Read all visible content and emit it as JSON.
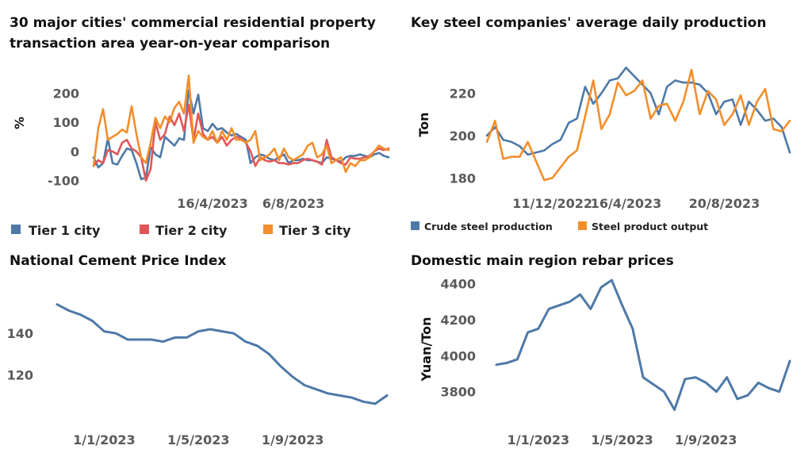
{
  "colors": {
    "blue": "#4e79a7",
    "red": "#e15759",
    "orange": "#f28e2b"
  },
  "chart_data": [
    {
      "id": "c1",
      "type": "line",
      "title": "30 major cities' commercial residential property transaction area year-on-year comparison",
      "title_lines": [
        "30 major cities' commercial residential property",
        "transaction area year-on-year comparison"
      ],
      "ylabel": "%",
      "xlabel": "",
      "ylim": [
        -120,
        280
      ],
      "yticks": [
        -100,
        0,
        100,
        200
      ],
      "ytick_labels": [
        "-100",
        "0",
        "100",
        "200"
      ],
      "xlim": [
        0,
        62
      ],
      "xticks": [
        {
          "x": 25,
          "label": "16/4/2023"
        },
        {
          "x": 42,
          "label": "6/8/2023"
        }
      ],
      "legend": "bottom",
      "legend_labels": [
        "Tier 1 city",
        "Tier 2 city",
        "Tier 3 city"
      ],
      "x": [
        0,
        1,
        2,
        3,
        4,
        5,
        6,
        7,
        8,
        9,
        10,
        11,
        12,
        13,
        14,
        15,
        16,
        17,
        18,
        19,
        20,
        21,
        22,
        23,
        24,
        25,
        26,
        27,
        28,
        29,
        30,
        31,
        32,
        33,
        34,
        35,
        36,
        37,
        38,
        39,
        40,
        41,
        42,
        43,
        44,
        45,
        46,
        47,
        48,
        49,
        50,
        51,
        52,
        53,
        54,
        55,
        56,
        57,
        58,
        59,
        60,
        61,
        62
      ],
      "series": [
        {
          "name": "Tier 1 city",
          "color": "#4e79a7",
          "values": [
            -20,
            -55,
            -40,
            45,
            -40,
            -45,
            -15,
            10,
            5,
            -40,
            -95,
            -90,
            15,
            -10,
            -20,
            50,
            35,
            20,
            45,
            40,
            210,
            130,
            195,
            80,
            70,
            95,
            75,
            80,
            65,
            55,
            60,
            50,
            40,
            -40,
            -20,
            -10,
            -15,
            -25,
            -30,
            -20,
            -10,
            -40,
            -30,
            -30,
            -25,
            -30,
            -30,
            -35,
            -40,
            -20,
            -25,
            -30,
            -35,
            -20,
            -15,
            -15,
            -10,
            -15,
            -20,
            -10,
            -5,
            -15,
            -20
          ]
        },
        {
          "name": "Tier 2 city",
          "color": "#e15759",
          "values": [
            -50,
            -30,
            -40,
            5,
            0,
            -10,
            30,
            40,
            10,
            0,
            -20,
            -100,
            -60,
            100,
            40,
            60,
            120,
            90,
            130,
            70,
            160,
            40,
            130,
            60,
            40,
            50,
            30,
            50,
            20,
            40,
            50,
            45,
            30,
            0,
            -50,
            -20,
            -30,
            -35,
            -30,
            -40,
            -40,
            -45,
            -40,
            -40,
            -30,
            -25,
            -30,
            -35,
            -45,
            40,
            -20,
            -30,
            -40,
            -45,
            -20,
            -25,
            -25,
            -20,
            -15,
            0,
            10,
            5,
            10
          ]
        },
        {
          "name": "Tier 3 city",
          "color": "#f28e2b",
          "values": [
            -50,
            80,
            145,
            40,
            50,
            60,
            75,
            65,
            155,
            60,
            -20,
            -40,
            30,
            115,
            80,
            120,
            100,
            150,
            170,
            130,
            260,
            30,
            70,
            50,
            40,
            70,
            30,
            70,
            40,
            80,
            40,
            40,
            30,
            40,
            70,
            -30,
            -20,
            -10,
            10,
            -30,
            10,
            -20,
            -30,
            -20,
            -10,
            20,
            30,
            -20,
            -10,
            20,
            -40,
            -30,
            -20,
            -70,
            -40,
            -50,
            -30,
            -30,
            -20,
            0,
            20,
            10,
            5
          ]
        }
      ]
    },
    {
      "id": "c2",
      "type": "line",
      "title": "Key steel companies' average daily production",
      "title_lines": [
        "Key steel companies' average daily production"
      ],
      "ylabel": "Ton",
      "xlabel": "",
      "ylim": [
        176,
        234
      ],
      "yticks": [
        180,
        200,
        220
      ],
      "ytick_labels": [
        "180",
        "200",
        "220"
      ],
      "xlim": [
        0,
        37
      ],
      "xticks": [
        {
          "x": 8,
          "label": "11/12/2022"
        },
        {
          "x": 17,
          "label": "16/4/2023"
        },
        {
          "x": 29,
          "label": "20/8/2023"
        }
      ],
      "legend": "bottom",
      "legend_labels": [
        "Crude steel production",
        "Steel product output"
      ],
      "x": [
        0,
        1,
        2,
        3,
        4,
        5,
        6,
        7,
        8,
        9,
        10,
        11,
        12,
        13,
        14,
        15,
        16,
        17,
        18,
        19,
        20,
        21,
        22,
        23,
        24,
        25,
        26,
        27,
        28,
        29,
        30,
        31,
        32,
        33,
        34,
        35,
        36,
        37
      ],
      "series": [
        {
          "name": "Crude steel production",
          "color": "#4e79a7",
          "values": [
            200,
            204,
            198,
            197,
            195,
            191,
            192,
            193,
            196,
            198,
            206,
            208,
            223,
            215,
            220,
            226,
            227,
            232,
            228,
            224,
            220,
            210,
            223,
            226,
            225,
            225,
            224,
            220,
            210,
            216,
            217,
            205,
            216,
            212,
            207,
            208,
            204,
            192
          ]
        },
        {
          "name": "Steel product output",
          "color": "#f28e2b",
          "values": [
            197,
            207,
            189,
            190,
            190,
            197,
            188,
            179,
            180,
            185,
            190,
            193,
            209,
            226,
            203,
            210,
            225,
            219,
            221,
            226,
            208,
            214,
            215,
            207,
            216,
            231,
            210,
            221,
            217,
            205,
            210,
            219,
            205,
            216,
            222,
            203,
            202,
            207
          ]
        }
      ]
    },
    {
      "id": "c3",
      "type": "line",
      "title": "National Cement Price Index",
      "title_lines": [
        "National Cement Price Index"
      ],
      "ylabel": "",
      "xlabel": "",
      "ylim": [
        101,
        160
      ],
      "yticks": [
        120,
        140
      ],
      "ytick_labels": [
        "120",
        "140"
      ],
      "xlim": [
        0,
        14
      ],
      "xticks": [
        {
          "x": 2,
          "label": "1/1/2023"
        },
        {
          "x": 6,
          "label": "1/5/2023"
        },
        {
          "x": 10,
          "label": "1/9/2023"
        }
      ],
      "legend": "none",
      "x": [
        0,
        0.5,
        1,
        1.5,
        2,
        2.5,
        3,
        3.5,
        4,
        4.5,
        5,
        5.5,
        6,
        6.5,
        7,
        7.5,
        8,
        8.5,
        9,
        9.5,
        10,
        10.5,
        11,
        11.5,
        12,
        12.5,
        13,
        13.5,
        14
      ],
      "series": [
        {
          "name": "",
          "color": "#4e79a7",
          "values": [
            154,
            151,
            149,
            146,
            141,
            140,
            137,
            137,
            137,
            136,
            138,
            138,
            141,
            142,
            141,
            140,
            136,
            134,
            130,
            124,
            119,
            115,
            113,
            111,
            110,
            109,
            107,
            106,
            110
          ]
        }
      ]
    },
    {
      "id": "c4",
      "type": "line",
      "title": "Domestic main region rebar prices",
      "title_lines": [
        "Domestic main region rebar prices"
      ],
      "ylabel": "Yuan/Ton",
      "xlabel": "",
      "ylim": [
        3640,
        4460
      ],
      "yticks": [
        3800,
        4000,
        4200,
        4400
      ],
      "ytick_labels": [
        "3800",
        "4000",
        "4200",
        "4400"
      ],
      "xlim": [
        0,
        14
      ],
      "xticks": [
        {
          "x": 2,
          "label": "1/1/2023"
        },
        {
          "x": 6,
          "label": "1/5/2023"
        },
        {
          "x": 10,
          "label": "1/9/2023"
        }
      ],
      "legend": "none",
      "x": [
        0,
        0.5,
        1,
        1.5,
        2,
        2.5,
        3,
        3.5,
        4,
        4.5,
        5,
        5.5,
        6,
        6.5,
        7,
        7.5,
        8,
        8.5,
        9,
        9.5,
        10,
        10.5,
        11,
        11.5,
        12,
        12.5,
        13,
        13.5,
        14
      ],
      "series": [
        {
          "name": "",
          "color": "#4e79a7",
          "values": [
            3950,
            3960,
            3980,
            4130,
            4150,
            4260,
            4280,
            4300,
            4340,
            4260,
            4380,
            4420,
            4280,
            4150,
            3880,
            3840,
            3800,
            3700,
            3870,
            3880,
            3850,
            3800,
            3880,
            3760,
            3780,
            3850,
            3820,
            3800,
            3970
          ]
        }
      ]
    }
  ]
}
